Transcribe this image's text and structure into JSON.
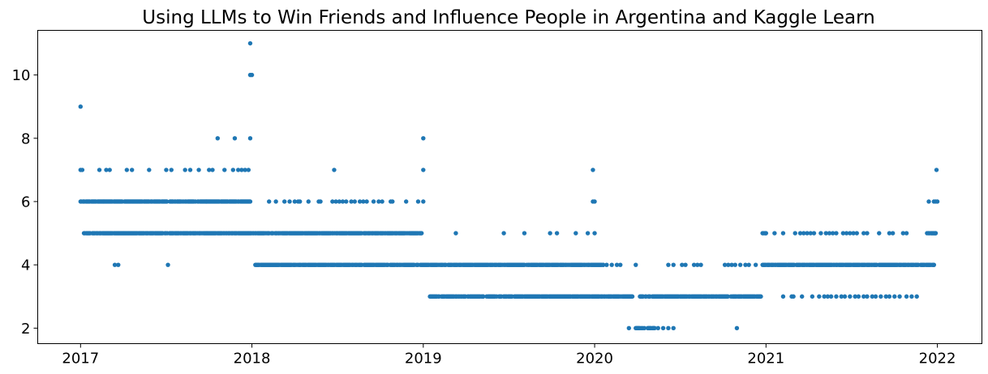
{
  "chart_data": {
    "type": "scatter",
    "title": "Using LLMs to Win Friends and Influence People in Argentina and Kaggle Learn",
    "xlabel": "",
    "ylabel": "",
    "xlim": [
      2016.75,
      2022.26
    ],
    "ylim": [
      1.51,
      11.41
    ],
    "x_ticks": [
      2017,
      2018,
      2019,
      2020,
      2021,
      2022
    ],
    "x_tick_labels": [
      "2017",
      "2018",
      "2019",
      "2020",
      "2021",
      "2022"
    ],
    "y_ticks": [
      2,
      4,
      6,
      8,
      10
    ],
    "y_tick_labels": [
      "2",
      "4",
      "6",
      "8",
      "10"
    ],
    "grid": false,
    "marker_color": "#1f77b4",
    "note": "x values are decimal years; dense runs are [y, x_start, x_end] sampled roughly daily",
    "dense_runs": [
      [
        6,
        2017.0,
        2017.99
      ],
      [
        5,
        2017.02,
        2018.99
      ],
      [
        4,
        2018.02,
        2020.05
      ],
      [
        3,
        2019.03,
        2019.35
      ],
      [
        3,
        2019.37,
        2020.22
      ],
      [
        3,
        2020.26,
        2020.97
      ],
      [
        4,
        2020.98,
        2021.98
      ],
      [
        5,
        2020.98,
        2021.0
      ],
      [
        5,
        2021.94,
        2021.99
      ],
      [
        2,
        2020.24,
        2020.28
      ],
      [
        2,
        2020.31,
        2020.35
      ]
    ],
    "points": [
      [
        9,
        2017.0
      ],
      [
        11,
        2017.99
      ],
      [
        10,
        2017.99
      ],
      [
        10,
        2018.0
      ],
      [
        8,
        2017.8
      ],
      [
        8,
        2017.9
      ],
      [
        8,
        2017.99
      ],
      [
        8,
        2019.0
      ],
      [
        7,
        2017.0
      ],
      [
        7,
        2017.01
      ],
      [
        7,
        2017.11
      ],
      [
        7,
        2017.15
      ],
      [
        7,
        2017.17
      ],
      [
        7,
        2017.27
      ],
      [
        7,
        2017.3
      ],
      [
        7,
        2017.4
      ],
      [
        7,
        2017.5
      ],
      [
        7,
        2017.53
      ],
      [
        7,
        2017.61
      ],
      [
        7,
        2017.64
      ],
      [
        7,
        2017.69
      ],
      [
        7,
        2017.75
      ],
      [
        7,
        2017.77
      ],
      [
        7,
        2017.84
      ],
      [
        7,
        2017.89
      ],
      [
        7,
        2017.92
      ],
      [
        7,
        2017.94
      ],
      [
        7,
        2017.96
      ],
      [
        7,
        2017.98
      ],
      [
        7,
        2018.48
      ],
      [
        7,
        2019.0
      ],
      [
        7,
        2019.99
      ],
      [
        7,
        2021.995
      ],
      [
        6,
        2018.1
      ],
      [
        6,
        2018.14
      ],
      [
        6,
        2018.19
      ],
      [
        6,
        2018.22
      ],
      [
        6,
        2018.25
      ],
      [
        6,
        2018.27
      ],
      [
        6,
        2018.28
      ],
      [
        6,
        2018.33
      ],
      [
        6,
        2018.39
      ],
      [
        6,
        2018.4
      ],
      [
        6,
        2018.47
      ],
      [
        6,
        2018.49
      ],
      [
        6,
        2018.51
      ],
      [
        6,
        2018.53
      ],
      [
        6,
        2018.55
      ],
      [
        6,
        2018.58
      ],
      [
        6,
        2018.6
      ],
      [
        6,
        2018.63
      ],
      [
        6,
        2018.65
      ],
      [
        6,
        2018.67
      ],
      [
        6,
        2018.71
      ],
      [
        6,
        2018.74
      ],
      [
        6,
        2018.76
      ],
      [
        6,
        2018.81
      ],
      [
        6,
        2018.82
      ],
      [
        6,
        2018.9
      ],
      [
        6,
        2018.97
      ],
      [
        6,
        2019.0
      ],
      [
        6,
        2019.99
      ],
      [
        6,
        2020.0
      ],
      [
        6,
        2021.95
      ],
      [
        6,
        2021.98
      ],
      [
        6,
        2021.99
      ],
      [
        6,
        2022.0
      ],
      [
        5,
        2019.19
      ],
      [
        5,
        2019.47
      ],
      [
        5,
        2019.59
      ],
      [
        5,
        2019.74
      ],
      [
        5,
        2019.78
      ],
      [
        5,
        2019.89
      ],
      [
        5,
        2019.96
      ],
      [
        5,
        2020.0
      ],
      [
        5,
        2021.05
      ],
      [
        5,
        2021.1
      ],
      [
        5,
        2021.17
      ],
      [
        5,
        2021.2
      ],
      [
        5,
        2021.22
      ],
      [
        5,
        2021.24
      ],
      [
        5,
        2021.26
      ],
      [
        5,
        2021.28
      ],
      [
        5,
        2021.32
      ],
      [
        5,
        2021.35
      ],
      [
        5,
        2021.37
      ],
      [
        5,
        2021.39
      ],
      [
        5,
        2021.41
      ],
      [
        5,
        2021.45
      ],
      [
        5,
        2021.47
      ],
      [
        5,
        2021.49
      ],
      [
        5,
        2021.51
      ],
      [
        5,
        2021.53
      ],
      [
        5,
        2021.57
      ],
      [
        5,
        2021.59
      ],
      [
        5,
        2021.66
      ],
      [
        5,
        2021.72
      ],
      [
        5,
        2021.74
      ],
      [
        5,
        2021.8
      ],
      [
        5,
        2021.82
      ],
      [
        4,
        2017.2
      ],
      [
        4,
        2017.22
      ],
      [
        4,
        2017.51
      ],
      [
        4,
        2020.07
      ],
      [
        4,
        2020.1
      ],
      [
        4,
        2020.13
      ],
      [
        4,
        2020.15
      ],
      [
        4,
        2020.24
      ],
      [
        4,
        2020.43
      ],
      [
        4,
        2020.46
      ],
      [
        4,
        2020.51
      ],
      [
        4,
        2020.53
      ],
      [
        4,
        2020.58
      ],
      [
        4,
        2020.6
      ],
      [
        4,
        2020.62
      ],
      [
        4,
        2020.76
      ],
      [
        4,
        2020.78
      ],
      [
        4,
        2020.8
      ],
      [
        4,
        2020.82
      ],
      [
        4,
        2020.85
      ],
      [
        4,
        2020.88
      ],
      [
        4,
        2020.9
      ],
      [
        4,
        2020.94
      ],
      [
        3,
        2021.1
      ],
      [
        3,
        2021.15
      ],
      [
        3,
        2021.16
      ],
      [
        3,
        2021.21
      ],
      [
        3,
        2021.27
      ],
      [
        3,
        2021.31
      ],
      [
        3,
        2021.34
      ],
      [
        3,
        2021.36
      ],
      [
        3,
        2021.38
      ],
      [
        3,
        2021.41
      ],
      [
        3,
        2021.44
      ],
      [
        3,
        2021.46
      ],
      [
        3,
        2021.49
      ],
      [
        3,
        2021.52
      ],
      [
        3,
        2021.54
      ],
      [
        3,
        2021.57
      ],
      [
        3,
        2021.59
      ],
      [
        3,
        2021.62
      ],
      [
        3,
        2021.64
      ],
      [
        3,
        2021.67
      ],
      [
        3,
        2021.7
      ],
      [
        3,
        2021.72
      ],
      [
        3,
        2021.75
      ],
      [
        3,
        2021.78
      ],
      [
        3,
        2021.82
      ],
      [
        3,
        2021.85
      ],
      [
        3,
        2021.88
      ],
      [
        2,
        2020.2
      ],
      [
        2,
        2020.29
      ],
      [
        2,
        2020.37
      ],
      [
        2,
        2020.4
      ],
      [
        2,
        2020.43
      ],
      [
        2,
        2020.46
      ],
      [
        2,
        2020.83
      ]
    ]
  }
}
